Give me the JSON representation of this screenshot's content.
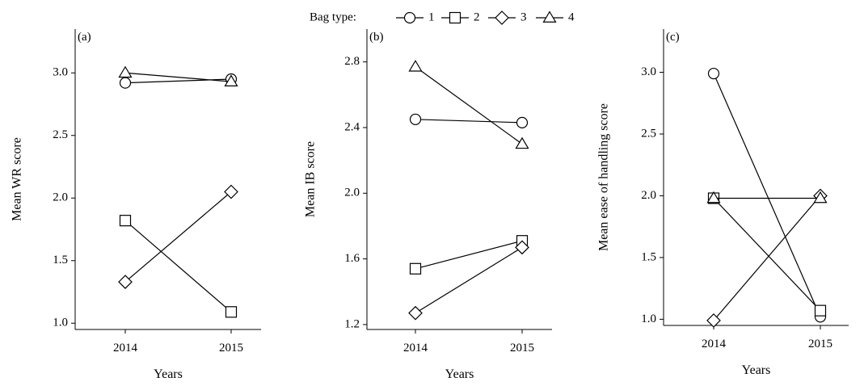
{
  "legend": {
    "title": "Bag type:",
    "entries": [
      {
        "label": "1",
        "marker": "circle"
      },
      {
        "label": "2",
        "marker": "square"
      },
      {
        "label": "3",
        "marker": "diamond"
      },
      {
        "label": "4",
        "marker": "triangle"
      }
    ]
  },
  "chart_data": [
    {
      "type": "line",
      "panel_label": "(a)",
      "xlabel": "Years",
      "ylabel": "Mean WR score",
      "categories": [
        "2014",
        "2015"
      ],
      "ylim": [
        0.95,
        3.35
      ],
      "yticks": [
        1.0,
        1.5,
        2.0,
        2.5,
        3.0
      ],
      "ytick_labels": [
        "1.0",
        "1.5",
        "2.0",
        "2.5",
        "3.0"
      ],
      "series": [
        {
          "name": "1",
          "marker": "circle",
          "values": [
            2.92,
            2.95
          ]
        },
        {
          "name": "2",
          "marker": "square",
          "values": [
            1.82,
            1.09
          ]
        },
        {
          "name": "3",
          "marker": "diamond",
          "values": [
            1.33,
            2.05
          ]
        },
        {
          "name": "4",
          "marker": "triangle",
          "values": [
            3.0,
            2.93
          ]
        }
      ]
    },
    {
      "type": "line",
      "panel_label": "(b)",
      "xlabel": "Years",
      "ylabel": "Mean IB score",
      "categories": [
        "2014",
        "2015"
      ],
      "ylim": [
        1.17,
        3.0
      ],
      "yticks": [
        1.2,
        1.6,
        2.0,
        2.4,
        2.8
      ],
      "ytick_labels": [
        "1.2",
        "1.6",
        "2.0",
        "2.4",
        "2.8"
      ],
      "series": [
        {
          "name": "1",
          "marker": "circle",
          "values": [
            2.45,
            2.43
          ]
        },
        {
          "name": "2",
          "marker": "square",
          "values": [
            1.54,
            1.71
          ]
        },
        {
          "name": "3",
          "marker": "diamond",
          "values": [
            1.27,
            1.67
          ]
        },
        {
          "name": "4",
          "marker": "triangle",
          "values": [
            2.77,
            2.3
          ]
        }
      ]
    },
    {
      "type": "line",
      "panel_label": "(c)",
      "xlabel": "Years",
      "ylabel": "Mean ease of handling  score",
      "categories": [
        "2014",
        "2015"
      ],
      "ylim": [
        0.95,
        3.35
      ],
      "yticks": [
        1.0,
        1.5,
        2.0,
        2.5,
        3.0
      ],
      "ytick_labels": [
        "1.0",
        "1.5",
        "2.0",
        "2.5",
        "3.0"
      ],
      "series": [
        {
          "name": "1",
          "marker": "circle",
          "values": [
            2.99,
            1.02
          ]
        },
        {
          "name": "2",
          "marker": "square",
          "values": [
            1.98,
            1.07
          ]
        },
        {
          "name": "3",
          "marker": "diamond",
          "values": [
            0.99,
            2.0
          ]
        },
        {
          "name": "4",
          "marker": "triangle",
          "values": [
            1.98,
            1.98
          ]
        }
      ]
    }
  ]
}
